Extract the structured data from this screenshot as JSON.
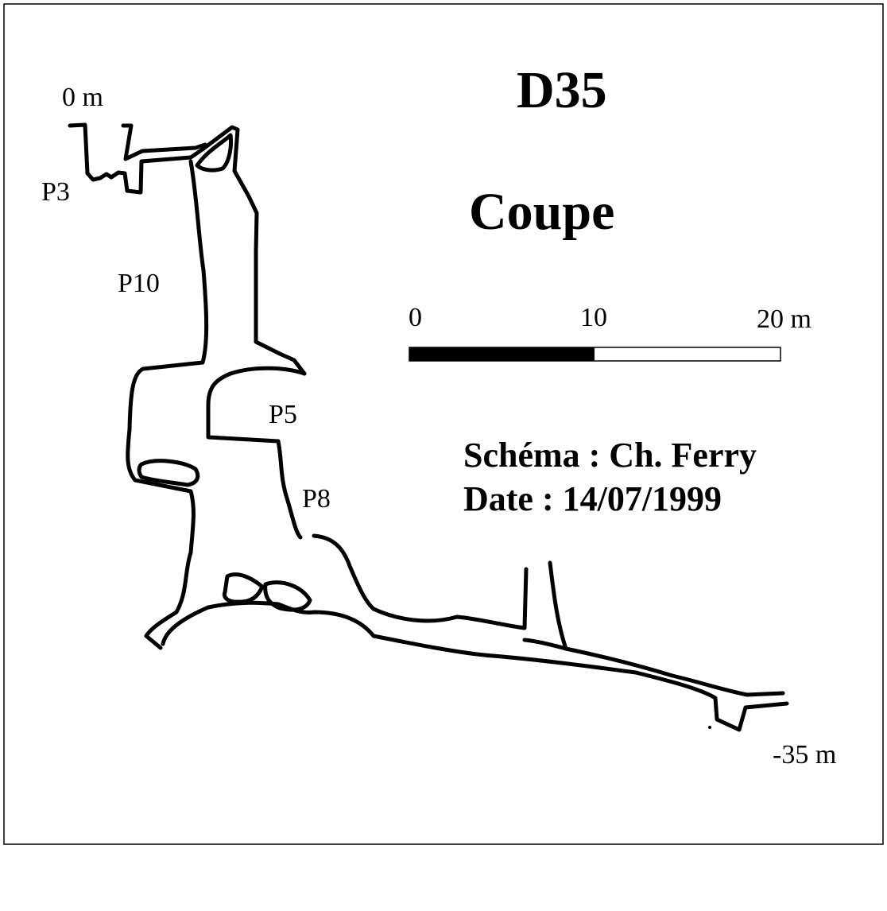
{
  "title": "D35",
  "subtitle": "Coupe",
  "depth": {
    "top": "0 m",
    "bottom": "-35 m"
  },
  "pitches": [
    "P3",
    "P10",
    "P5",
    "P8"
  ],
  "scale": {
    "ticks": [
      "0",
      "10",
      "20 m"
    ],
    "fill_color": "#000000"
  },
  "credits": {
    "author": "Schéma : Ch. Ferry",
    "date": "Date : 14/07/1999"
  },
  "colors": {
    "ink": "#000000",
    "paper": "#ffffff"
  }
}
